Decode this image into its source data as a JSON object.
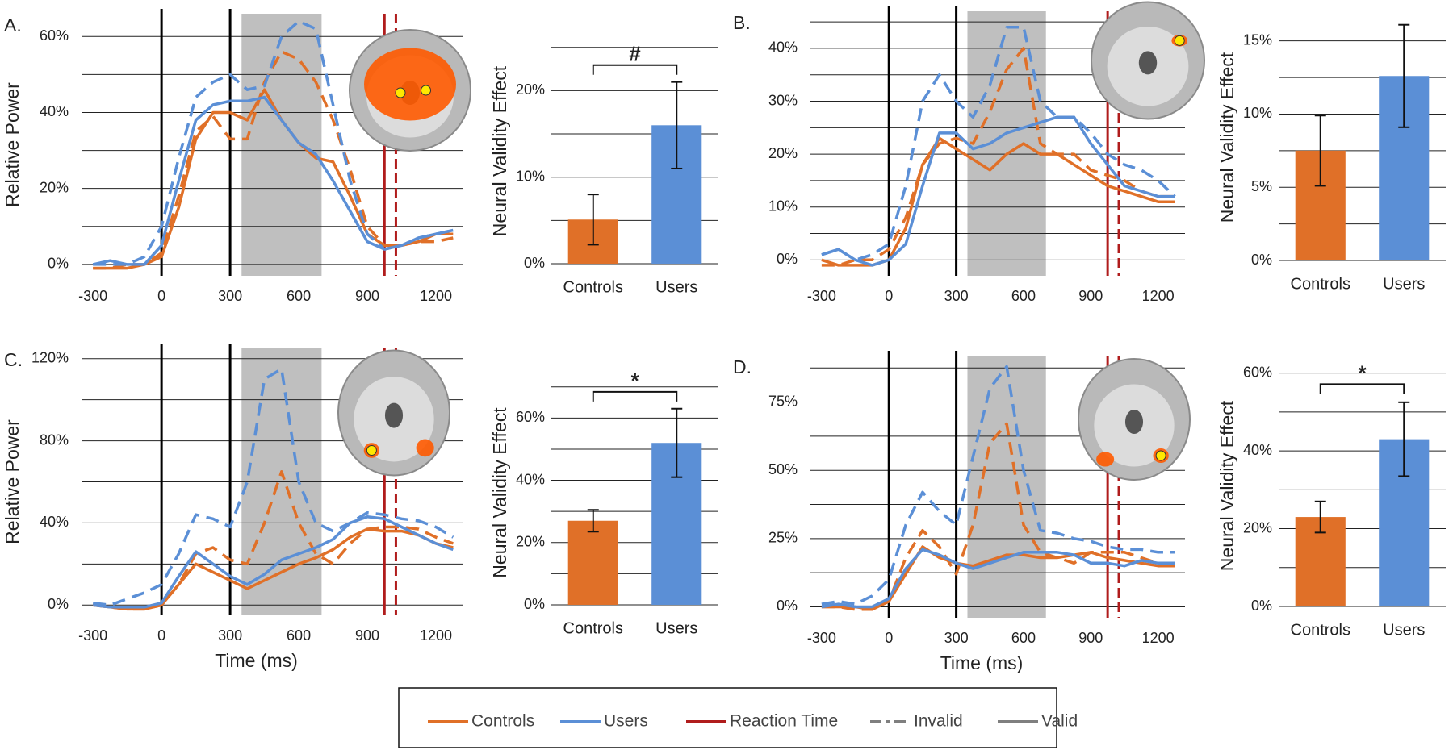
{
  "chart_data": [
    {
      "type": "line",
      "panel_label": "A.",
      "ylabel": "Relative Power",
      "x": [
        -300,
        -225,
        -150,
        -75,
        0,
        75,
        150,
        225,
        300,
        375,
        450,
        525,
        600,
        675,
        750,
        825,
        900,
        975,
        1050,
        1125,
        1200,
        1275
      ],
      "xlim": [
        -350,
        1320
      ],
      "xticks": [
        -300,
        0,
        300,
        600,
        900,
        1200
      ],
      "ylim": [
        -3,
        66
      ],
      "yticks": [
        {
          "value": 0,
          "label": "0%"
        },
        {
          "value": 20,
          "label": "20%"
        },
        {
          "value": 40,
          "label": "40%"
        },
        {
          "value": 60,
          "label": "60%"
        }
      ],
      "minor_yticks": [
        10,
        30,
        50
      ],
      "vlines": [
        0,
        300
      ],
      "shade": [
        350,
        700
      ],
      "reaction_time": [
        {
          "value": 975,
          "dashed": false
        },
        {
          "value": 1025,
          "dashed": true
        }
      ],
      "series": [
        {
          "color": "#e07028",
          "dashed": false,
          "values": [
            -1,
            -1,
            -1,
            0,
            2,
            15,
            33,
            40,
            40,
            38,
            46,
            38,
            32,
            28,
            27,
            18,
            8,
            5,
            5,
            6,
            8,
            8
          ]
        },
        {
          "color": "#e07028",
          "dashed": true,
          "values": [
            -1,
            -1,
            0,
            0,
            3,
            18,
            35,
            39,
            33,
            33,
            48,
            56,
            54,
            48,
            38,
            25,
            10,
            5,
            5,
            6,
            6,
            7
          ]
        },
        {
          "color": "#5b8fd6",
          "dashed": false,
          "values": [
            0,
            1,
            0,
            0,
            5,
            22,
            38,
            42,
            43,
            43,
            44,
            38,
            32,
            29,
            22,
            14,
            6,
            4,
            5,
            7,
            8,
            9
          ]
        },
        {
          "color": "#5b8fd6",
          "dashed": true,
          "values": [
            0,
            0,
            0,
            2,
            10,
            28,
            44,
            48,
            50,
            46,
            47,
            60,
            64,
            62,
            42,
            22,
            8,
            4,
            5,
            7,
            8,
            9
          ]
        }
      ]
    },
    {
      "type": "bar",
      "ylabel": "Neural Validity Effect",
      "categories": [
        "Controls",
        "Users"
      ],
      "values": [
        5.1,
        16
      ],
      "errors": [
        2.9,
        5
      ],
      "colors": [
        "#e07028",
        "#5b8fd6"
      ],
      "ylim": [
        0,
        26
      ],
      "yticks": [
        {
          "value": 0,
          "label": "0%"
        },
        {
          "value": 10,
          "label": "10%"
        },
        {
          "value": 20,
          "label": "20%"
        }
      ],
      "minor_yticks": [
        5,
        15,
        25
      ],
      "annotation": "#"
    },
    {
      "type": "line",
      "panel_label": "B.",
      "x": [
        -300,
        -225,
        -150,
        -75,
        0,
        75,
        150,
        225,
        300,
        375,
        450,
        525,
        600,
        675,
        750,
        825,
        900,
        975,
        1050,
        1125,
        1200,
        1275
      ],
      "xlim": [
        -350,
        1320
      ],
      "xticks": [
        -300,
        0,
        300,
        600,
        900,
        1200
      ],
      "ylim": [
        -3,
        47
      ],
      "yticks": [
        {
          "value": 0,
          "label": "0%"
        },
        {
          "value": 10,
          "label": "10%"
        },
        {
          "value": 20,
          "label": "20%"
        },
        {
          "value": 30,
          "label": "30%"
        },
        {
          "value": 40,
          "label": "40%"
        }
      ],
      "minor_yticks": [
        5,
        15,
        25,
        35,
        45
      ],
      "vlines": [
        0,
        300
      ],
      "shade": [
        350,
        700
      ],
      "reaction_time": [
        {
          "value": 975,
          "dashed": false
        },
        {
          "value": 1025,
          "dashed": true
        }
      ],
      "series": [
        {
          "color": "#e07028",
          "dashed": false,
          "values": [
            0,
            -1,
            -1,
            -1,
            0,
            6,
            18,
            23,
            21,
            19,
            17,
            20,
            22,
            20,
            20,
            18,
            16,
            14,
            13,
            12,
            11,
            11
          ]
        },
        {
          "color": "#e07028",
          "dashed": true,
          "values": [
            -1,
            -1,
            0,
            0,
            2,
            8,
            18,
            22,
            23,
            22,
            28,
            36,
            40,
            22,
            20,
            20,
            17,
            16,
            15,
            13,
            12,
            12
          ]
        },
        {
          "color": "#5b8fd6",
          "dashed": false,
          "values": [
            1,
            2,
            0,
            -1,
            0,
            3,
            14,
            24,
            24,
            21,
            22,
            24,
            25,
            26,
            27,
            27,
            22,
            18,
            14,
            13,
            12,
            12
          ]
        },
        {
          "color": "#5b8fd6",
          "dashed": true,
          "values": [
            1,
            2,
            0,
            1,
            3,
            14,
            30,
            35,
            30,
            27,
            33,
            44,
            44,
            30,
            27,
            27,
            24,
            20,
            18,
            17,
            15,
            12
          ]
        }
      ]
    },
    {
      "type": "bar",
      "ylabel": "Neural Validity Effect",
      "categories": [
        "Controls",
        "Users"
      ],
      "values": [
        7.5,
        12.6
      ],
      "errors": [
        2.4,
        3.5
      ],
      "colors": [
        "#e07028",
        "#5b8fd6"
      ],
      "ylim": [
        0,
        16.8
      ],
      "yticks": [
        {
          "value": 0,
          "label": "0%"
        },
        {
          "value": 5,
          "label": "5%"
        },
        {
          "value": 10,
          "label": "10%"
        },
        {
          "value": 15,
          "label": "15%"
        }
      ],
      "minor_yticks": [
        2.5,
        7.5,
        12.5
      ]
    },
    {
      "type": "line",
      "panel_label": "C.",
      "ylabel": "Relative Power",
      "xlabel": "Time (ms)",
      "x": [
        -300,
        -225,
        -150,
        -75,
        0,
        75,
        150,
        225,
        300,
        375,
        450,
        525,
        600,
        675,
        750,
        825,
        900,
        975,
        1050,
        1125,
        1200,
        1275
      ],
      "xlim": [
        -350,
        1320
      ],
      "xticks": [
        -300,
        0,
        300,
        600,
        900,
        1200
      ],
      "ylim": [
        -5,
        125
      ],
      "yticks": [
        {
          "value": 0,
          "label": "0%"
        },
        {
          "value": 40,
          "label": "40%"
        },
        {
          "value": 80,
          "label": "80%"
        },
        {
          "value": 120,
          "label": "120%"
        }
      ],
      "minor_yticks": [
        20,
        60,
        100
      ],
      "vlines": [
        0,
        300
      ],
      "shade": [
        350,
        700
      ],
      "reaction_time": [
        {
          "value": 975,
          "dashed": false
        },
        {
          "value": 1025,
          "dashed": true
        }
      ],
      "series": [
        {
          "color": "#e07028",
          "dashed": false,
          "values": [
            0,
            -1,
            -2,
            -2,
            0,
            10,
            20,
            16,
            12,
            8,
            12,
            16,
            20,
            23,
            27,
            33,
            37,
            36,
            36,
            34,
            30,
            28
          ]
        },
        {
          "color": "#e07028",
          "dashed": true,
          "values": [
            0,
            -1,
            -2,
            -2,
            0,
            10,
            25,
            28,
            22,
            20,
            40,
            65,
            40,
            25,
            20,
            30,
            37,
            38,
            38,
            37,
            33,
            30
          ]
        },
        {
          "color": "#5b8fd6",
          "dashed": false,
          "values": [
            0,
            -1,
            -1,
            -1,
            1,
            14,
            26,
            20,
            14,
            10,
            15,
            22,
            25,
            28,
            32,
            40,
            43,
            42,
            38,
            34,
            30,
            27
          ]
        },
        {
          "color": "#5b8fd6",
          "dashed": true,
          "values": [
            1,
            0,
            3,
            6,
            10,
            25,
            44,
            42,
            38,
            60,
            110,
            115,
            60,
            40,
            36,
            40,
            45,
            44,
            42,
            41,
            38,
            33
          ]
        }
      ]
    },
    {
      "type": "bar",
      "ylabel": "Neural Validity Effect",
      "categories": [
        "Controls",
        "Users"
      ],
      "values": [
        27,
        52
      ],
      "errors": [
        3.5,
        11
      ],
      "colors": [
        "#e07028",
        "#5b8fd6"
      ],
      "ylim": [
        0,
        72
      ],
      "yticks": [
        {
          "value": 0,
          "label": "0%"
        },
        {
          "value": 20,
          "label": "20%"
        },
        {
          "value": 40,
          "label": "40%"
        },
        {
          "value": 60,
          "label": "60%"
        }
      ],
      "minor_yticks": [
        10,
        30,
        50,
        70
      ],
      "annotation": "*"
    },
    {
      "type": "line",
      "panel_label": "D.",
      "xlabel": "Time (ms)",
      "x": [
        -300,
        -225,
        -150,
        -75,
        0,
        75,
        150,
        225,
        300,
        375,
        450,
        525,
        600,
        675,
        750,
        825,
        900,
        975,
        1050,
        1125,
        1200,
        1275
      ],
      "xlim": [
        -350,
        1320
      ],
      "xticks": [
        -300,
        0,
        300,
        600,
        900,
        1200
      ],
      "ylim": [
        -4,
        92
      ],
      "yticks": [
        {
          "value": 0,
          "label": "0%"
        },
        {
          "value": 25,
          "label": "25%"
        },
        {
          "value": 50,
          "label": "50%"
        },
        {
          "value": 75,
          "label": "75%"
        }
      ],
      "minor_yticks": [
        12.5,
        37.5,
        62.5,
        87.5
      ],
      "vlines": [
        0,
        300
      ],
      "shade": [
        350,
        700
      ],
      "reaction_time": [
        {
          "value": 975,
          "dashed": false
        },
        {
          "value": 1025,
          "dashed": true
        }
      ],
      "series": [
        {
          "color": "#e07028",
          "dashed": false,
          "values": [
            0,
            0,
            0,
            -1,
            2,
            12,
            22,
            18,
            16,
            15,
            17,
            19,
            19,
            18,
            18,
            19,
            20,
            18,
            17,
            16,
            15,
            15
          ]
        },
        {
          "color": "#e07028",
          "dashed": true,
          "values": [
            0,
            0,
            -1,
            -1,
            2,
            18,
            28,
            22,
            12,
            30,
            60,
            67,
            30,
            20,
            18,
            16,
            20,
            20,
            20,
            18,
            16,
            16
          ]
        },
        {
          "color": "#5b8fd6",
          "dashed": false,
          "values": [
            0,
            1,
            0,
            0,
            3,
            14,
            21,
            19,
            16,
            14,
            16,
            18,
            20,
            20,
            20,
            19,
            16,
            16,
            15,
            17,
            16,
            16
          ]
        },
        {
          "color": "#5b8fd6",
          "dashed": true,
          "values": [
            1,
            2,
            1,
            4,
            10,
            30,
            42,
            35,
            30,
            55,
            80,
            88,
            50,
            28,
            27,
            25,
            24,
            22,
            21,
            21,
            20,
            20
          ]
        }
      ]
    },
    {
      "type": "bar",
      "ylabel": "Neural Validity Effect",
      "categories": [
        "Controls",
        "Users"
      ],
      "values": [
        23,
        43
      ],
      "errors": [
        4,
        9.5
      ],
      "colors": [
        "#e07028",
        "#5b8fd6"
      ],
      "ylim": [
        0,
        62
      ],
      "yticks": [
        {
          "value": 0,
          "label": "0%"
        },
        {
          "value": 20,
          "label": "20%"
        },
        {
          "value": 40,
          "label": "40%"
        },
        {
          "value": 60,
          "label": "60%"
        }
      ],
      "minor_yticks": [
        10,
        30,
        50
      ],
      "annotation": "*"
    }
  ],
  "legend": [
    {
      "label": "Controls",
      "color": "#e07028",
      "dashed": false
    },
    {
      "label": "Users",
      "color": "#5b8fd6",
      "dashed": false
    },
    {
      "label": "Reaction Time",
      "color": "#b01c1c",
      "dashed": false
    },
    {
      "label": "Invalid",
      "color": "#7f7f7f",
      "dashed": true
    },
    {
      "label": "Valid",
      "color": "#7f7f7f",
      "dashed": false
    }
  ]
}
